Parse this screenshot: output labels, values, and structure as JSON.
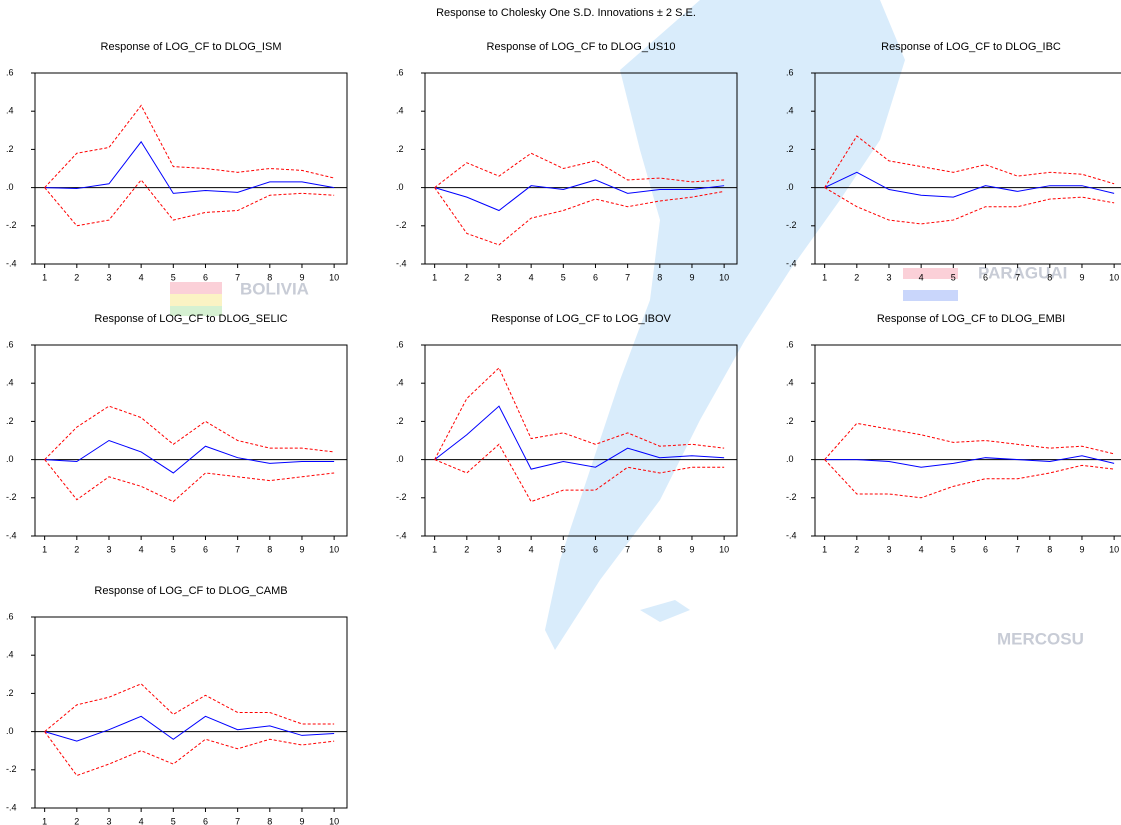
{
  "title": "Response to Cholesky One S.D. Innovations ± 2 S.E.",
  "watermark": [
    "BOLIVIA",
    "PARAGUAI",
    "MERCOSU"
  ],
  "chart_data": [
    {
      "type": "line",
      "title": "Response of LOG_CF to DLOG_ISM",
      "x": [
        1,
        2,
        3,
        4,
        5,
        6,
        7,
        8,
        9,
        10
      ],
      "series": [
        {
          "color": "#0000ff",
          "dashed": false,
          "values": [
            0,
            -0.005,
            0.02,
            0.24,
            -0.03,
            -0.015,
            -0.025,
            0.03,
            0.03,
            0
          ]
        },
        {
          "color": "#ff0000",
          "dashed": true,
          "values": [
            0,
            0.18,
            0.21,
            0.43,
            0.11,
            0.1,
            0.08,
            0.1,
            0.09,
            0.05
          ]
        },
        {
          "color": "#ff0000",
          "dashed": true,
          "values": [
            0,
            -0.2,
            -0.17,
            0.04,
            -0.17,
            -0.13,
            -0.12,
            -0.04,
            -0.03,
            -0.04
          ]
        }
      ],
      "xlim": [
        0.7,
        10.4
      ],
      "xticks": [
        1,
        2,
        3,
        4,
        5,
        6,
        7,
        8,
        9,
        10
      ],
      "ylim": [
        -0.4,
        0.6
      ],
      "yticks": [
        {
          "value": -0.4,
          "label": "-.4"
        },
        {
          "value": -0.2,
          "label": "-.2"
        },
        {
          "value": 0,
          "label": ".0"
        },
        {
          "value": 0.2,
          "label": ".2"
        },
        {
          "value": 0.4,
          "label": ".4"
        },
        {
          "value": 0.6,
          "label": ".6"
        }
      ],
      "zero_line": true
    },
    {
      "type": "line",
      "title": "Response of LOG_CF to DLOG_US10",
      "x": [
        1,
        2,
        3,
        4,
        5,
        6,
        7,
        8,
        9,
        10
      ],
      "series": [
        {
          "color": "#0000ff",
          "dashed": false,
          "values": [
            0,
            -0.05,
            -0.12,
            0.01,
            -0.01,
            0.04,
            -0.03,
            -0.01,
            -0.01,
            0.01
          ]
        },
        {
          "color": "#ff0000",
          "dashed": true,
          "values": [
            0,
            0.13,
            0.06,
            0.18,
            0.1,
            0.14,
            0.04,
            0.05,
            0.03,
            0.04
          ]
        },
        {
          "color": "#ff0000",
          "dashed": true,
          "values": [
            0,
            -0.24,
            -0.3,
            -0.16,
            -0.12,
            -0.06,
            -0.1,
            -0.07,
            -0.05,
            -0.02
          ]
        }
      ],
      "xlim": [
        0.7,
        10.4
      ],
      "xticks": [
        1,
        2,
        3,
        4,
        5,
        6,
        7,
        8,
        9,
        10
      ],
      "ylim": [
        -0.4,
        0.6
      ],
      "yticks": [
        {
          "value": -0.4,
          "label": "-.4"
        },
        {
          "value": -0.2,
          "label": "-.2"
        },
        {
          "value": 0,
          "label": ".0"
        },
        {
          "value": 0.2,
          "label": ".2"
        },
        {
          "value": 0.4,
          "label": ".4"
        },
        {
          "value": 0.6,
          "label": ".6"
        }
      ],
      "zero_line": true
    },
    {
      "type": "line",
      "title": "Response of LOG_CF to DLOG_IBC",
      "x": [
        1,
        2,
        3,
        4,
        5,
        6,
        7,
        8,
        9,
        10
      ],
      "series": [
        {
          "color": "#0000ff",
          "dashed": false,
          "values": [
            0,
            0.08,
            -0.01,
            -0.04,
            -0.05,
            0.01,
            -0.02,
            0.01,
            0.01,
            -0.03
          ]
        },
        {
          "color": "#ff0000",
          "dashed": true,
          "values": [
            0,
            0.27,
            0.14,
            0.11,
            0.08,
            0.12,
            0.06,
            0.08,
            0.07,
            0.02
          ]
        },
        {
          "color": "#ff0000",
          "dashed": true,
          "values": [
            0,
            -0.1,
            -0.17,
            -0.19,
            -0.17,
            -0.1,
            -0.1,
            -0.06,
            -0.05,
            -0.08
          ]
        }
      ],
      "xlim": [
        0.7,
        10.4
      ],
      "xticks": [
        1,
        2,
        3,
        4,
        5,
        6,
        7,
        8,
        9,
        10
      ],
      "ylim": [
        -0.4,
        0.6
      ],
      "yticks": [
        {
          "value": -0.4,
          "label": "-.4"
        },
        {
          "value": -0.2,
          "label": "-.2"
        },
        {
          "value": 0,
          "label": ".0"
        },
        {
          "value": 0.2,
          "label": ".2"
        },
        {
          "value": 0.4,
          "label": ".4"
        },
        {
          "value": 0.6,
          "label": ".6"
        }
      ],
      "zero_line": true
    },
    {
      "type": "line",
      "title": "Response of LOG_CF to DLOG_SELIC",
      "x": [
        1,
        2,
        3,
        4,
        5,
        6,
        7,
        8,
        9,
        10
      ],
      "series": [
        {
          "color": "#0000ff",
          "dashed": false,
          "values": [
            0,
            -0.01,
            0.1,
            0.04,
            -0.07,
            0.07,
            0.01,
            -0.02,
            -0.01,
            -0.01
          ]
        },
        {
          "color": "#ff0000",
          "dashed": true,
          "values": [
            0,
            0.17,
            0.28,
            0.22,
            0.08,
            0.2,
            0.1,
            0.06,
            0.06,
            0.04
          ]
        },
        {
          "color": "#ff0000",
          "dashed": true,
          "values": [
            0,
            -0.21,
            -0.09,
            -0.14,
            -0.22,
            -0.07,
            -0.09,
            -0.11,
            -0.09,
            -0.07
          ]
        }
      ],
      "xlim": [
        0.7,
        10.4
      ],
      "xticks": [
        1,
        2,
        3,
        4,
        5,
        6,
        7,
        8,
        9,
        10
      ],
      "ylim": [
        -0.4,
        0.6
      ],
      "yticks": [
        {
          "value": -0.4,
          "label": "-.4"
        },
        {
          "value": -0.2,
          "label": "-.2"
        },
        {
          "value": 0,
          "label": ".0"
        },
        {
          "value": 0.2,
          "label": ".2"
        },
        {
          "value": 0.4,
          "label": ".4"
        },
        {
          "value": 0.6,
          "label": ".6"
        }
      ],
      "zero_line": true
    },
    {
      "type": "line",
      "title": "Response of LOG_CF to LOG_IBOV",
      "x": [
        1,
        2,
        3,
        4,
        5,
        6,
        7,
        8,
        9,
        10
      ],
      "series": [
        {
          "color": "#0000ff",
          "dashed": false,
          "values": [
            0,
            0.13,
            0.28,
            -0.05,
            -0.01,
            -0.04,
            0.06,
            0.01,
            0.02,
            0.01
          ]
        },
        {
          "color": "#ff0000",
          "dashed": true,
          "values": [
            0,
            0.32,
            0.48,
            0.11,
            0.14,
            0.08,
            0.14,
            0.07,
            0.08,
            0.06
          ]
        },
        {
          "color": "#ff0000",
          "dashed": true,
          "values": [
            0,
            -0.07,
            0.08,
            -0.22,
            -0.16,
            -0.16,
            -0.04,
            -0.07,
            -0.04,
            -0.04
          ]
        }
      ],
      "xlim": [
        0.7,
        10.4
      ],
      "xticks": [
        1,
        2,
        3,
        4,
        5,
        6,
        7,
        8,
        9,
        10
      ],
      "ylim": [
        -0.4,
        0.6
      ],
      "yticks": [
        {
          "value": -0.4,
          "label": "-.4"
        },
        {
          "value": -0.2,
          "label": "-.2"
        },
        {
          "value": 0,
          "label": ".0"
        },
        {
          "value": 0.2,
          "label": ".2"
        },
        {
          "value": 0.4,
          "label": ".4"
        },
        {
          "value": 0.6,
          "label": ".6"
        }
      ],
      "zero_line": true
    },
    {
      "type": "line",
      "title": "Response of LOG_CF to DLOG_EMBI",
      "x": [
        1,
        2,
        3,
        4,
        5,
        6,
        7,
        8,
        9,
        10
      ],
      "series": [
        {
          "color": "#0000ff",
          "dashed": false,
          "values": [
            0,
            0,
            -0.01,
            -0.04,
            -0.02,
            0.01,
            0,
            -0.01,
            0.02,
            -0.02
          ]
        },
        {
          "color": "#ff0000",
          "dashed": true,
          "values": [
            0,
            0.19,
            0.16,
            0.13,
            0.09,
            0.1,
            0.08,
            0.06,
            0.07,
            0.03
          ]
        },
        {
          "color": "#ff0000",
          "dashed": true,
          "values": [
            0,
            -0.18,
            -0.18,
            -0.2,
            -0.14,
            -0.1,
            -0.1,
            -0.07,
            -0.03,
            -0.05
          ]
        }
      ],
      "xlim": [
        0.7,
        10.4
      ],
      "xticks": [
        1,
        2,
        3,
        4,
        5,
        6,
        7,
        8,
        9,
        10
      ],
      "ylim": [
        -0.4,
        0.6
      ],
      "yticks": [
        {
          "value": -0.4,
          "label": "-.4"
        },
        {
          "value": -0.2,
          "label": "-.2"
        },
        {
          "value": 0,
          "label": ".0"
        },
        {
          "value": 0.2,
          "label": ".2"
        },
        {
          "value": 0.4,
          "label": ".4"
        },
        {
          "value": 0.6,
          "label": ".6"
        }
      ],
      "zero_line": true
    },
    {
      "type": "line",
      "title": "Response of LOG_CF to DLOG_CAMB",
      "x": [
        1,
        2,
        3,
        4,
        5,
        6,
        7,
        8,
        9,
        10
      ],
      "series": [
        {
          "color": "#0000ff",
          "dashed": false,
          "values": [
            0,
            -0.05,
            0.01,
            0.08,
            -0.04,
            0.08,
            0.01,
            0.03,
            -0.02,
            -0.01
          ]
        },
        {
          "color": "#ff0000",
          "dashed": true,
          "values": [
            0,
            0.14,
            0.18,
            0.25,
            0.09,
            0.19,
            0.1,
            0.1,
            0.04,
            0.04
          ]
        },
        {
          "color": "#ff0000",
          "dashed": true,
          "values": [
            0,
            -0.23,
            -0.17,
            -0.1,
            -0.17,
            -0.04,
            -0.09,
            -0.04,
            -0.07,
            -0.05
          ]
        }
      ],
      "xlim": [
        0.7,
        10.4
      ],
      "xticks": [
        1,
        2,
        3,
        4,
        5,
        6,
        7,
        8,
        9,
        10
      ],
      "ylim": [
        -0.4,
        0.6
      ],
      "yticks": [
        {
          "value": -0.4,
          "label": "-.4"
        },
        {
          "value": -0.2,
          "label": "-.2"
        },
        {
          "value": 0,
          "label": ".0"
        },
        {
          "value": 0.2,
          "label": ".2"
        },
        {
          "value": 0.4,
          "label": ".4"
        },
        {
          "value": 0.6,
          "label": ".6"
        }
      ],
      "zero_line": true
    }
  ]
}
